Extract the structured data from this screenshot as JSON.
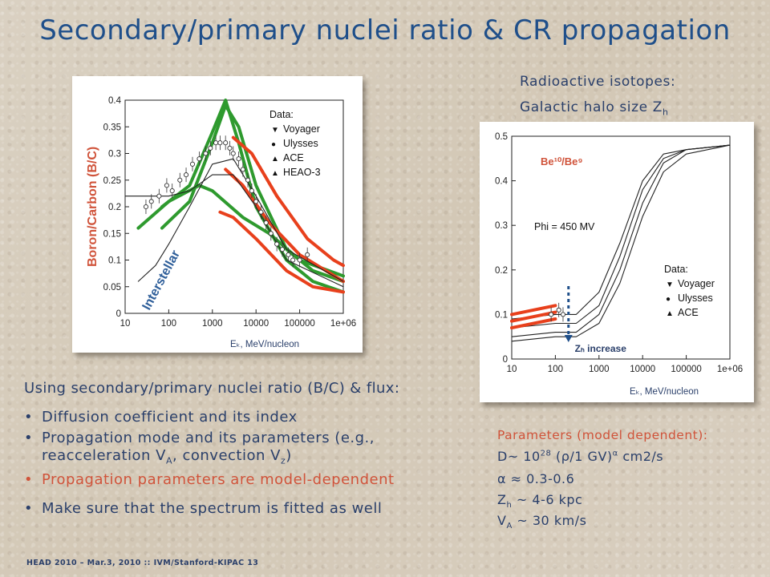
{
  "title": "Secondary/primary nuclei ratio & CR propagation",
  "right_header": {
    "line1": "Radioactive isotopes:",
    "line2_prefix": "Galactic halo size Z",
    "line2_sub": "h"
  },
  "intro": "Using secondary/primary nuclei ratio (B/C) & flux:",
  "bullets": [
    {
      "text": "Diffusion coefficient and its index",
      "color": "#2a3f6a"
    },
    {
      "text": "Propagation mode and its parameters (e.g.,",
      "line2": "reacceleration V",
      "line2_sub": "A",
      "line2_mid": ", convection V",
      "line2_sub2": "z",
      "line2_end": ")",
      "color": "#2a3f6a"
    },
    {
      "text": "Propagation parameters are model-dependent",
      "color": "#d0533a"
    },
    {
      "text": "Make sure that the spectrum is fitted as well",
      "color": "#2a3f6a"
    }
  ],
  "params": {
    "header": "Parameters (model dependent):",
    "d_line": {
      "a": "D~ 10",
      "sup": "28",
      "b": " (ρ/1 GV)",
      "sup2": "α",
      "c": " cm2/s"
    },
    "alpha_line": "α ≈ 0.3-0.6",
    "zh_line": {
      "a": "Z",
      "sub": "h",
      "b": " ~ 4-6 kpc"
    },
    "va_line": {
      "a": "V",
      "sub": "A",
      "b": " ~ 30 km/s"
    }
  },
  "footer": "HEAD 2010 – Mar.3, 2010 :: IVM/Stanford-KIPAC   13",
  "colors": {
    "title": "#1f4f8a",
    "text": "#2a3f6a",
    "red": "#e0401a",
    "green": "#2c9b2c",
    "ylabel": "#d0533a"
  },
  "chart_data": [
    {
      "type": "line",
      "ylabel": "Boron/Carbon (B/C)",
      "xlabel": "Eₖ, MeV/nucleon",
      "x_scale": "log",
      "xlim": [
        10,
        1000000
      ],
      "ylim": [
        0,
        0.4
      ],
      "xticks": [
        "10",
        "100",
        "1000",
        "10000",
        "100000",
        "1e+06"
      ],
      "yticks": [
        "0",
        "0.05",
        "0.1",
        "0.15",
        "0.2",
        "0.25",
        "0.3",
        "0.35",
        "0.4"
      ],
      "legend_title": "Data:",
      "legend": [
        "Voyager",
        "Ulysses",
        "ACE",
        "HEAO-3"
      ],
      "annotation": "Interstellar",
      "series": [
        {
          "color": "green",
          "points": [
            [
              70,
              0.2
            ],
            [
              300,
              0.24
            ],
            [
              1000,
              0.34
            ],
            [
              2000,
              0.4
            ],
            [
              4000,
              0.32
            ],
            [
              10000,
              0.2
            ],
            [
              50000,
              0.1
            ],
            [
              200000,
              0.06
            ],
            [
              1000000,
              0.04
            ]
          ]
        },
        {
          "color": "green",
          "points": [
            [
              70,
              0.16
            ],
            [
              300,
              0.21
            ],
            [
              1000,
              0.32
            ],
            [
              2000,
              0.39
            ],
            [
              4000,
              0.35
            ],
            [
              10000,
              0.24
            ],
            [
              50000,
              0.12
            ],
            [
              200000,
              0.08
            ],
            [
              1000000,
              0.06
            ]
          ]
        },
        {
          "color": "green",
          "points": [
            [
              20,
              0.16
            ],
            [
              100,
              0.21
            ],
            [
              500,
              0.24
            ],
            [
              1000,
              0.23
            ],
            [
              5000,
              0.18
            ],
            [
              20000,
              0.15
            ],
            [
              100000,
              0.1
            ],
            [
              1000000,
              0.07
            ]
          ]
        },
        {
          "color": "red",
          "points": [
            [
              1500,
              0.19
            ],
            [
              3000,
              0.18
            ],
            [
              10000,
              0.14
            ],
            [
              50000,
              0.08
            ],
            [
              200000,
              0.05
            ],
            [
              1000000,
              0.04
            ]
          ]
        },
        {
          "color": "red",
          "points": [
            [
              2000,
              0.27
            ],
            [
              5000,
              0.24
            ],
            [
              20000,
              0.17
            ],
            [
              100000,
              0.11
            ],
            [
              400000,
              0.08
            ],
            [
              1000000,
              0.06
            ]
          ]
        },
        {
          "color": "red",
          "points": [
            [
              3000,
              0.33
            ],
            [
              8000,
              0.3
            ],
            [
              30000,
              0.22
            ],
            [
              150000,
              0.14
            ],
            [
              600000,
              0.1
            ],
            [
              1000000,
              0.09
            ]
          ]
        },
        {
          "color": "black",
          "points": [
            [
              10,
              0.22
            ],
            [
              40,
              0.22
            ],
            [
              100,
              0.22
            ],
            [
              300,
              0.23
            ],
            [
              1000,
              0.26
            ],
            [
              3000,
              0.26
            ],
            [
              10000,
              0.2
            ],
            [
              50000,
              0.1
            ],
            [
              1000000,
              0.05
            ]
          ]
        },
        {
          "color": "black",
          "points": [
            [
              20,
              0.06
            ],
            [
              50,
              0.09
            ],
            [
              100,
              0.13
            ],
            [
              300,
              0.2
            ],
            [
              1000,
              0.28
            ],
            [
              3000,
              0.29
            ],
            [
              10000,
              0.22
            ],
            [
              50000,
              0.12
            ],
            [
              1000000,
              0.06
            ]
          ]
        }
      ],
      "data_points": [
        [
          30,
          0.2
        ],
        [
          40,
          0.21
        ],
        [
          60,
          0.22
        ],
        [
          90,
          0.24
        ],
        [
          120,
          0.23
        ],
        [
          180,
          0.25
        ],
        [
          250,
          0.26
        ],
        [
          350,
          0.28
        ],
        [
          500,
          0.29
        ],
        [
          700,
          0.3
        ],
        [
          900,
          0.31
        ],
        [
          1200,
          0.32
        ],
        [
          1500,
          0.32
        ],
        [
          2000,
          0.32
        ],
        [
          2500,
          0.31
        ],
        [
          3000,
          0.3
        ],
        [
          4000,
          0.29
        ],
        [
          5000,
          0.27
        ],
        [
          6500,
          0.25
        ],
        [
          8000,
          0.23
        ],
        [
          10000,
          0.21
        ],
        [
          13000,
          0.19
        ],
        [
          17000,
          0.17
        ],
        [
          22000,
          0.15
        ],
        [
          30000,
          0.13
        ],
        [
          40000,
          0.12
        ],
        [
          55000,
          0.11
        ],
        [
          70000,
          0.1
        ],
        [
          100000,
          0.1
        ],
        [
          150000,
          0.11
        ]
      ]
    },
    {
      "type": "line",
      "ylabel": "",
      "xlabel": "Eₖ, MeV/nucleon",
      "x_scale": "log",
      "xlim": [
        10,
        1000000
      ],
      "ylim": [
        0,
        0.5
      ],
      "xticks": [
        "10",
        "100",
        "1000",
        "10000",
        "100000",
        "1e+06"
      ],
      "yticks": [
        "0",
        "0.1",
        "0.2",
        "0.3",
        "0.4",
        "0.5"
      ],
      "title_label": "Be¹⁰/Be⁹",
      "phi_label": "Phi = 450 MV",
      "arrow_label": "Zₕ increase",
      "legend_title": "Data:",
      "legend": [
        "Voyager",
        "Ulysses",
        "ACE"
      ],
      "series": [
        {
          "color": "black",
          "points": [
            [
              10,
              0.07
            ],
            [
              100,
              0.08
            ],
            [
              300,
              0.08
            ],
            [
              1000,
              0.12
            ],
            [
              3000,
              0.23
            ],
            [
              10000,
              0.38
            ],
            [
              30000,
              0.45
            ],
            [
              100000,
              0.47
            ],
            [
              1000000,
              0.48
            ]
          ]
        },
        {
          "color": "black",
          "points": [
            [
              10,
              0.09
            ],
            [
              100,
              0.1
            ],
            [
              300,
              0.1
            ],
            [
              1000,
              0.15
            ],
            [
              3000,
              0.26
            ],
            [
              10000,
              0.4
            ],
            [
              30000,
              0.46
            ],
            [
              100000,
              0.47
            ],
            [
              1000000,
              0.48
            ]
          ]
        },
        {
          "color": "black",
          "points": [
            [
              10,
              0.05
            ],
            [
              100,
              0.06
            ],
            [
              300,
              0.06
            ],
            [
              1000,
              0.1
            ],
            [
              3000,
              0.2
            ],
            [
              10000,
              0.35
            ],
            [
              30000,
              0.44
            ],
            [
              100000,
              0.47
            ],
            [
              1000000,
              0.48
            ]
          ]
        },
        {
          "color": "black",
          "points": [
            [
              10,
              0.04
            ],
            [
              100,
              0.05
            ],
            [
              300,
              0.05
            ],
            [
              1000,
              0.08
            ],
            [
              3000,
              0.17
            ],
            [
              10000,
              0.32
            ],
            [
              30000,
              0.42
            ],
            [
              100000,
              0.46
            ],
            [
              1000000,
              0.48
            ]
          ]
        },
        {
          "color": "red",
          "points": [
            [
              10,
              0.1
            ],
            [
              100,
              0.12
            ]
          ]
        },
        {
          "color": "red",
          "points": [
            [
              10,
              0.085
            ],
            [
              100,
              0.105
            ]
          ]
        },
        {
          "color": "red",
          "points": [
            [
              10,
              0.07
            ],
            [
              100,
              0.09
            ]
          ]
        }
      ],
      "data_points": [
        [
          80,
          0.1
        ],
        [
          120,
          0.11
        ],
        [
          150,
          0.1
        ]
      ]
    }
  ]
}
